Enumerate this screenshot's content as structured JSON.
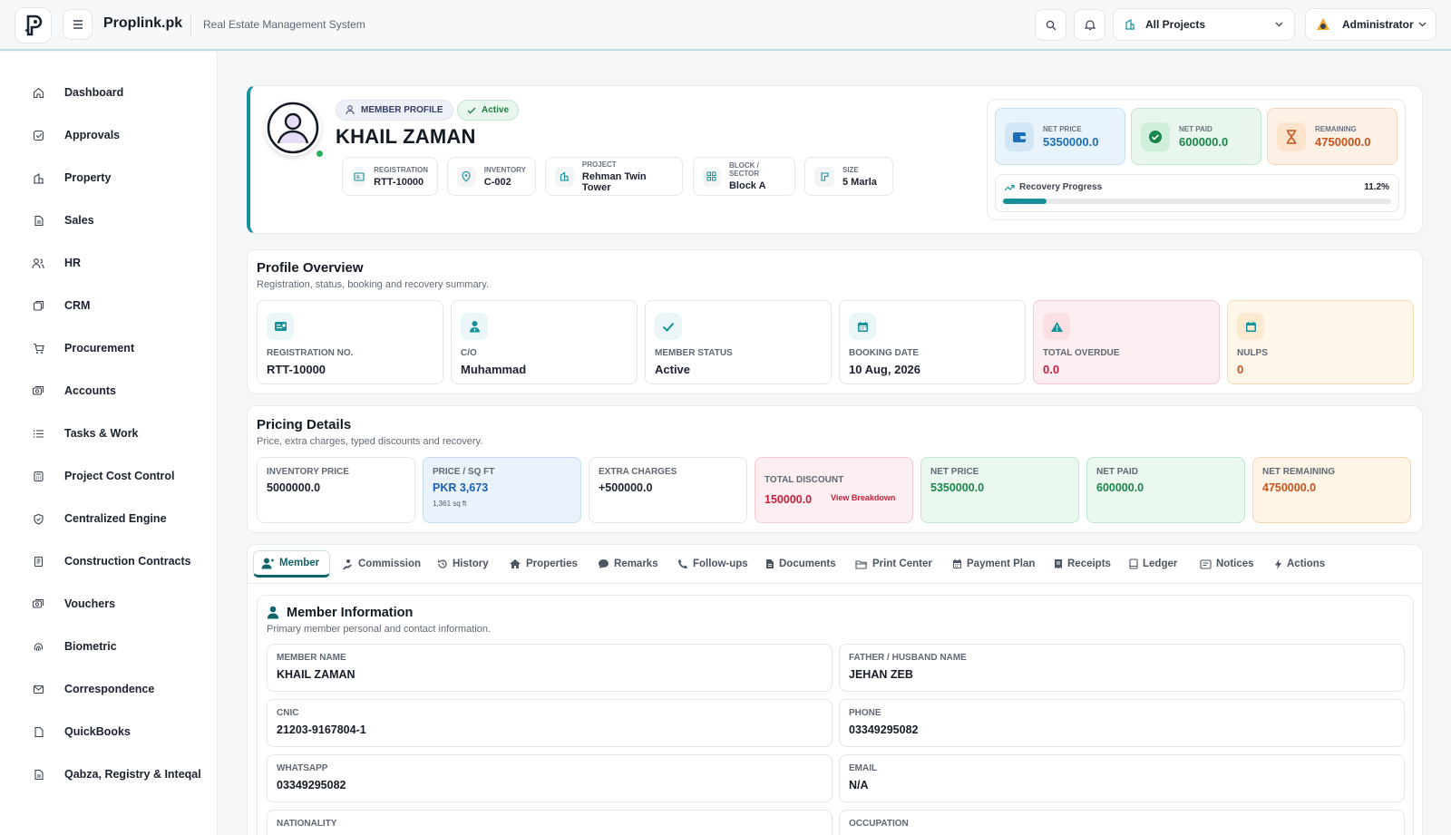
{
  "app": {
    "brand": "Proplink.pk",
    "subtitle": "Real Estate Management System"
  },
  "topbar": {
    "project_select": "All Projects",
    "user": "Administrator",
    "icons": [
      "search-icon",
      "bell-icon"
    ]
  },
  "sidebar": {
    "items": [
      {
        "label": "Dashboard",
        "icon": "home-icon"
      },
      {
        "label": "Approvals",
        "icon": "check-square-icon"
      },
      {
        "label": "Property",
        "icon": "building-icon"
      },
      {
        "label": "Sales",
        "icon": "document-icon"
      },
      {
        "label": "HR",
        "icon": "users-icon"
      },
      {
        "label": "CRM",
        "icon": "crm-icon"
      },
      {
        "label": "Procurement",
        "icon": "cart-icon"
      },
      {
        "label": "Accounts",
        "icon": "money-icon"
      },
      {
        "label": "Tasks & Work",
        "icon": "list-icon"
      },
      {
        "label": "Project Cost Control",
        "icon": "calculator-icon"
      },
      {
        "label": "Centralized Engine",
        "icon": "shield-icon"
      },
      {
        "label": "Construction Contracts",
        "icon": "contract-icon"
      },
      {
        "label": "Vouchers",
        "icon": "voucher-icon"
      },
      {
        "label": "Biometric",
        "icon": "fingerprint-icon"
      },
      {
        "label": "Correspondence",
        "icon": "mail-icon"
      },
      {
        "label": "QuickBooks",
        "icon": "book-icon"
      },
      {
        "label": "Qabza, Registry & Inteqal",
        "icon": "registry-icon"
      }
    ]
  },
  "profile": {
    "badge": "MEMBER PROFILE",
    "status": "Active",
    "name": "KHAIL ZAMAN",
    "meta": [
      {
        "label": "REGISTRATION",
        "value": "RTT-10000"
      },
      {
        "label": "INVENTORY",
        "value": "C-002"
      },
      {
        "label": "PROJECT",
        "value": "Rehman Twin Tower"
      },
      {
        "label": "BLOCK / SECTOR",
        "value": "Block A"
      },
      {
        "label": "SIZE",
        "value": "5 Marla"
      }
    ],
    "stats": [
      {
        "label": "NET PRICE",
        "value": "5350000.0",
        "color": "#1b6fb8"
      },
      {
        "label": "NET PAID",
        "value": "600000.0",
        "color": "#19864a"
      },
      {
        "label": "REMAINING",
        "value": "4750000.0",
        "color": "#c8531b"
      }
    ],
    "recovery": {
      "label": "Recovery Progress",
      "percent_text": "11.2%",
      "fraction": 0.112
    }
  },
  "overview": {
    "title": "Profile Overview",
    "subtitle": "Registration, status, booking and recovery summary.",
    "items": [
      {
        "label": "REGISTRATION NO.",
        "value": "RTT-10000"
      },
      {
        "label": "C/O",
        "value": "Muhammad"
      },
      {
        "label": "MEMBER STATUS",
        "value": "Active"
      },
      {
        "label": "BOOKING DATE",
        "value": "10 Aug, 2026"
      },
      {
        "label": "TOTAL OVERDUE",
        "value": "0.0"
      },
      {
        "label": "NULPS",
        "value": "0"
      }
    ]
  },
  "pricing": {
    "title": "Pricing Details",
    "subtitle": "Price, extra charges, typed discounts and recovery.",
    "items": [
      {
        "label": "INVENTORY PRICE",
        "value": "5000000.0"
      },
      {
        "label": "PRICE / SQ FT",
        "value": "PKR 3,673",
        "note": "1,361 sq ft"
      },
      {
        "label": "EXTRA CHARGES",
        "value": "+500000.0"
      },
      {
        "label": "TOTAL DISCOUNT",
        "value": "150000.0",
        "link": "View Breakdown"
      },
      {
        "label": "NET PRICE",
        "value": "5350000.0"
      },
      {
        "label": "NET PAID",
        "value": "600000.0"
      },
      {
        "label": "NET REMAINING",
        "value": "4750000.0"
      }
    ]
  },
  "tabs": [
    {
      "label": "Member",
      "icon": "user-icon"
    },
    {
      "label": "Commission",
      "icon": "commission-icon"
    },
    {
      "label": "History",
      "icon": "history-icon"
    },
    {
      "label": "Properties",
      "icon": "house-icon"
    },
    {
      "label": "Remarks",
      "icon": "comment-icon"
    },
    {
      "label": "Follow-ups",
      "icon": "phone-icon"
    },
    {
      "label": "Documents",
      "icon": "file-icon"
    },
    {
      "label": "Print Center",
      "icon": "folder-icon"
    },
    {
      "label": "Payment Plan",
      "icon": "calendar-icon"
    },
    {
      "label": "Receipts",
      "icon": "receipt-icon"
    },
    {
      "label": "Ledger",
      "icon": "ledger-icon"
    },
    {
      "label": "Notices",
      "icon": "notice-icon"
    },
    {
      "label": "Actions",
      "icon": "bolt-icon"
    }
  ],
  "member_info": {
    "title": "Member Information",
    "subtitle": "Primary member personal and contact information.",
    "fields": [
      {
        "label": "MEMBER NAME",
        "value": "KHAIL ZAMAN"
      },
      {
        "label": "FATHER / HUSBAND NAME",
        "value": "JEHAN ZEB"
      },
      {
        "label": "CNIC",
        "value": "21203-9167804-1"
      },
      {
        "label": "PHONE",
        "value": "03349295082"
      },
      {
        "label": "WHATSAPP",
        "value": "03349295082"
      },
      {
        "label": "EMAIL",
        "value": "N/A"
      },
      {
        "label": "NATIONALITY",
        "value": ""
      },
      {
        "label": "OCCUPATION",
        "value": ""
      }
    ]
  }
}
